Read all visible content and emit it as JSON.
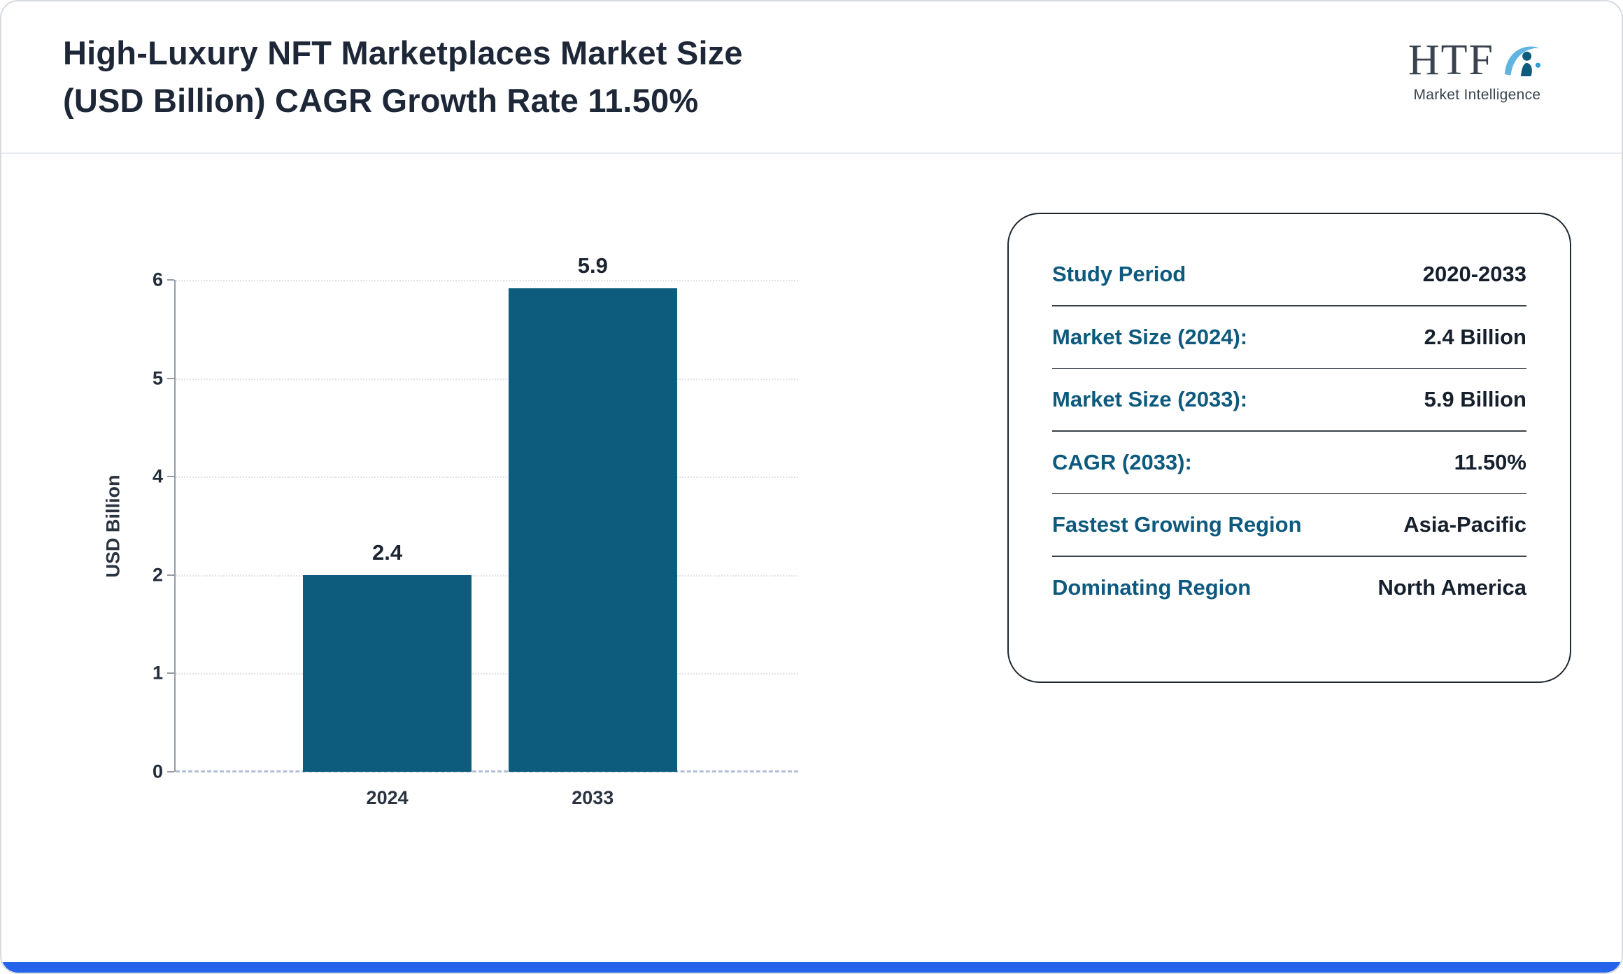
{
  "page": {
    "title_line1": "High-Luxury NFT Marketplaces Market Size",
    "title_line2": "(USD Billion) CAGR Growth Rate 11.50%",
    "accent_bar_color": "#2563eb",
    "title_color": "#1d2737"
  },
  "logo": {
    "text": "HTF",
    "subtext": "Market Intelligence",
    "icon": "swoosh-person-icon"
  },
  "chart_data": {
    "type": "bar",
    "title": "High-Luxury NFT Marketplaces Market Size (USD Billion) CAGR Growth Rate 11.50%",
    "categories": [
      "2024",
      "2033"
    ],
    "values": [
      2.4,
      5.9
    ],
    "value_labels": [
      "2.4",
      "5.9"
    ],
    "xlabel": "",
    "ylabel": "USD Billion",
    "ylim": [
      0,
      6
    ],
    "yticks_top_to_bottom": [
      "6",
      "5",
      "4",
      "2",
      "1",
      "0"
    ],
    "grid": "dotted-horizontal",
    "legend": "none",
    "bar_color": "#0d5c7e"
  },
  "info_panel": {
    "label_color": "#0e5a7e",
    "value_color": "#161f2c",
    "rows": [
      {
        "label": "Study Period",
        "value": "2020-2033"
      },
      {
        "label": "Market Size (2024):",
        "value": "2.4 Billion"
      },
      {
        "label": "Market Size (2033):",
        "value": "5.9 Billion"
      },
      {
        "label": "CAGR (2033):",
        "value": "11.50%"
      },
      {
        "label": "Fastest Growing Region",
        "value": "Asia-Pacific"
      },
      {
        "label": "Dominating Region",
        "value": "North America"
      }
    ]
  }
}
